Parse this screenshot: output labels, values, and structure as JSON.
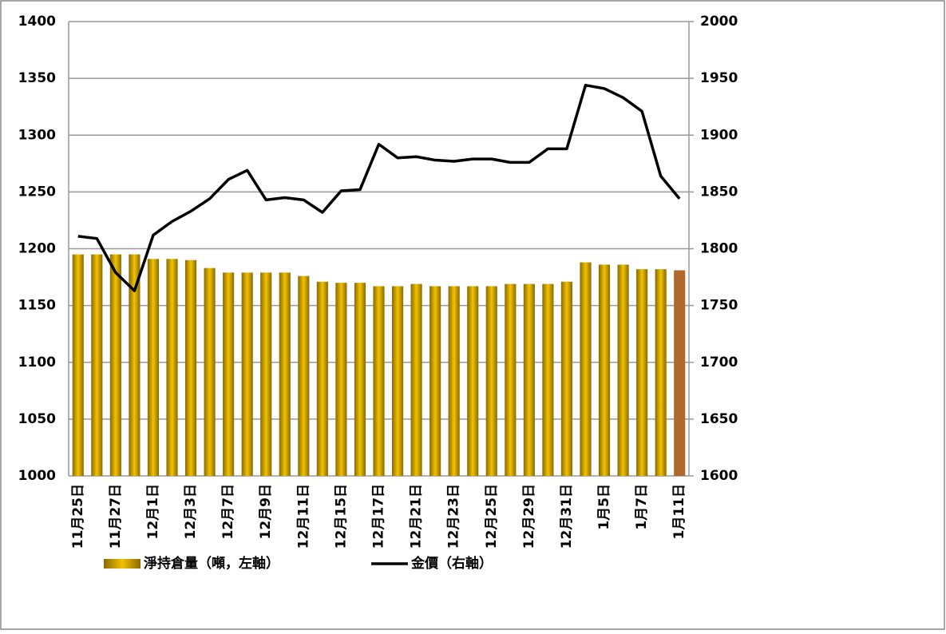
{
  "chart_data": {
    "type": "bar-line",
    "categories": [
      "11月25日",
      null,
      "11月27日",
      null,
      "12月1日",
      null,
      "12月3日",
      null,
      "12月7日",
      null,
      "12月9日",
      null,
      "12月11日",
      null,
      "12月15日",
      null,
      "12月17日",
      null,
      "12月21日",
      null,
      "12月23日",
      null,
      "12月25日",
      null,
      "12月29日",
      null,
      "12月31日",
      null,
      "1月5日",
      null,
      "1月7日",
      null,
      "1月11日"
    ],
    "series": [
      {
        "name": "淨持倉量（噸，左軸）",
        "type": "bar",
        "color": "#c9a100",
        "colors": [
          "#c9a100",
          "#c9a100",
          "#c9a100",
          "#c9a100",
          "#c9a100",
          "#c9a100",
          "#c9a100",
          "#c9a100",
          "#c9a100",
          "#c9a100",
          "#c9a100",
          "#c9a100",
          "#c9a100",
          "#c9a100",
          "#c9a100",
          "#c9a100",
          "#c9a100",
          "#c9a100",
          "#c9a100",
          "#c9a100",
          "#c9a100",
          "#c9a100",
          "#c9a100",
          "#c9a100",
          "#c9a100",
          "#c9a100",
          "#c9a100",
          "#c9a100",
          "#c9a100",
          "#c9a100",
          "#c9a100",
          "#c9a100",
          "#b0682e"
        ],
        "values": [
          1195,
          1195,
          1195,
          1195,
          1191,
          1191,
          1190,
          1183,
          1179,
          1179,
          1179,
          1179,
          1176,
          1171,
          1170,
          1170,
          1167,
          1167,
          1169,
          1167,
          1167,
          1167,
          1167,
          1169,
          1169,
          1169,
          1171,
          1188,
          1186,
          1186,
          1182,
          1182,
          1181
        ]
      },
      {
        "name": "金價（右軸）",
        "type": "line",
        "color": "#000000",
        "axis": "y2",
        "values": [
          1811,
          1809,
          1779,
          1763,
          1812,
          1824,
          1833,
          1844,
          1861,
          1869,
          1843,
          1845,
          1843,
          1832,
          1851,
          1852,
          1892,
          1880,
          1881,
          1878,
          1877,
          1879,
          1879,
          1876,
          1876,
          1888,
          1888,
          1944,
          1941,
          1933,
          1921,
          1864,
          1844
        ]
      }
    ],
    "ylim": [
      1000,
      1400
    ],
    "yticks": [
      1000,
      1050,
      1100,
      1150,
      1200,
      1250,
      1300,
      1350,
      1400
    ],
    "y2lim": [
      1600,
      2000
    ],
    "y2ticks": [
      1600,
      1650,
      1700,
      1750,
      1800,
      1850,
      1900,
      1950,
      2000
    ],
    "grid": true,
    "legend": "bottom"
  }
}
